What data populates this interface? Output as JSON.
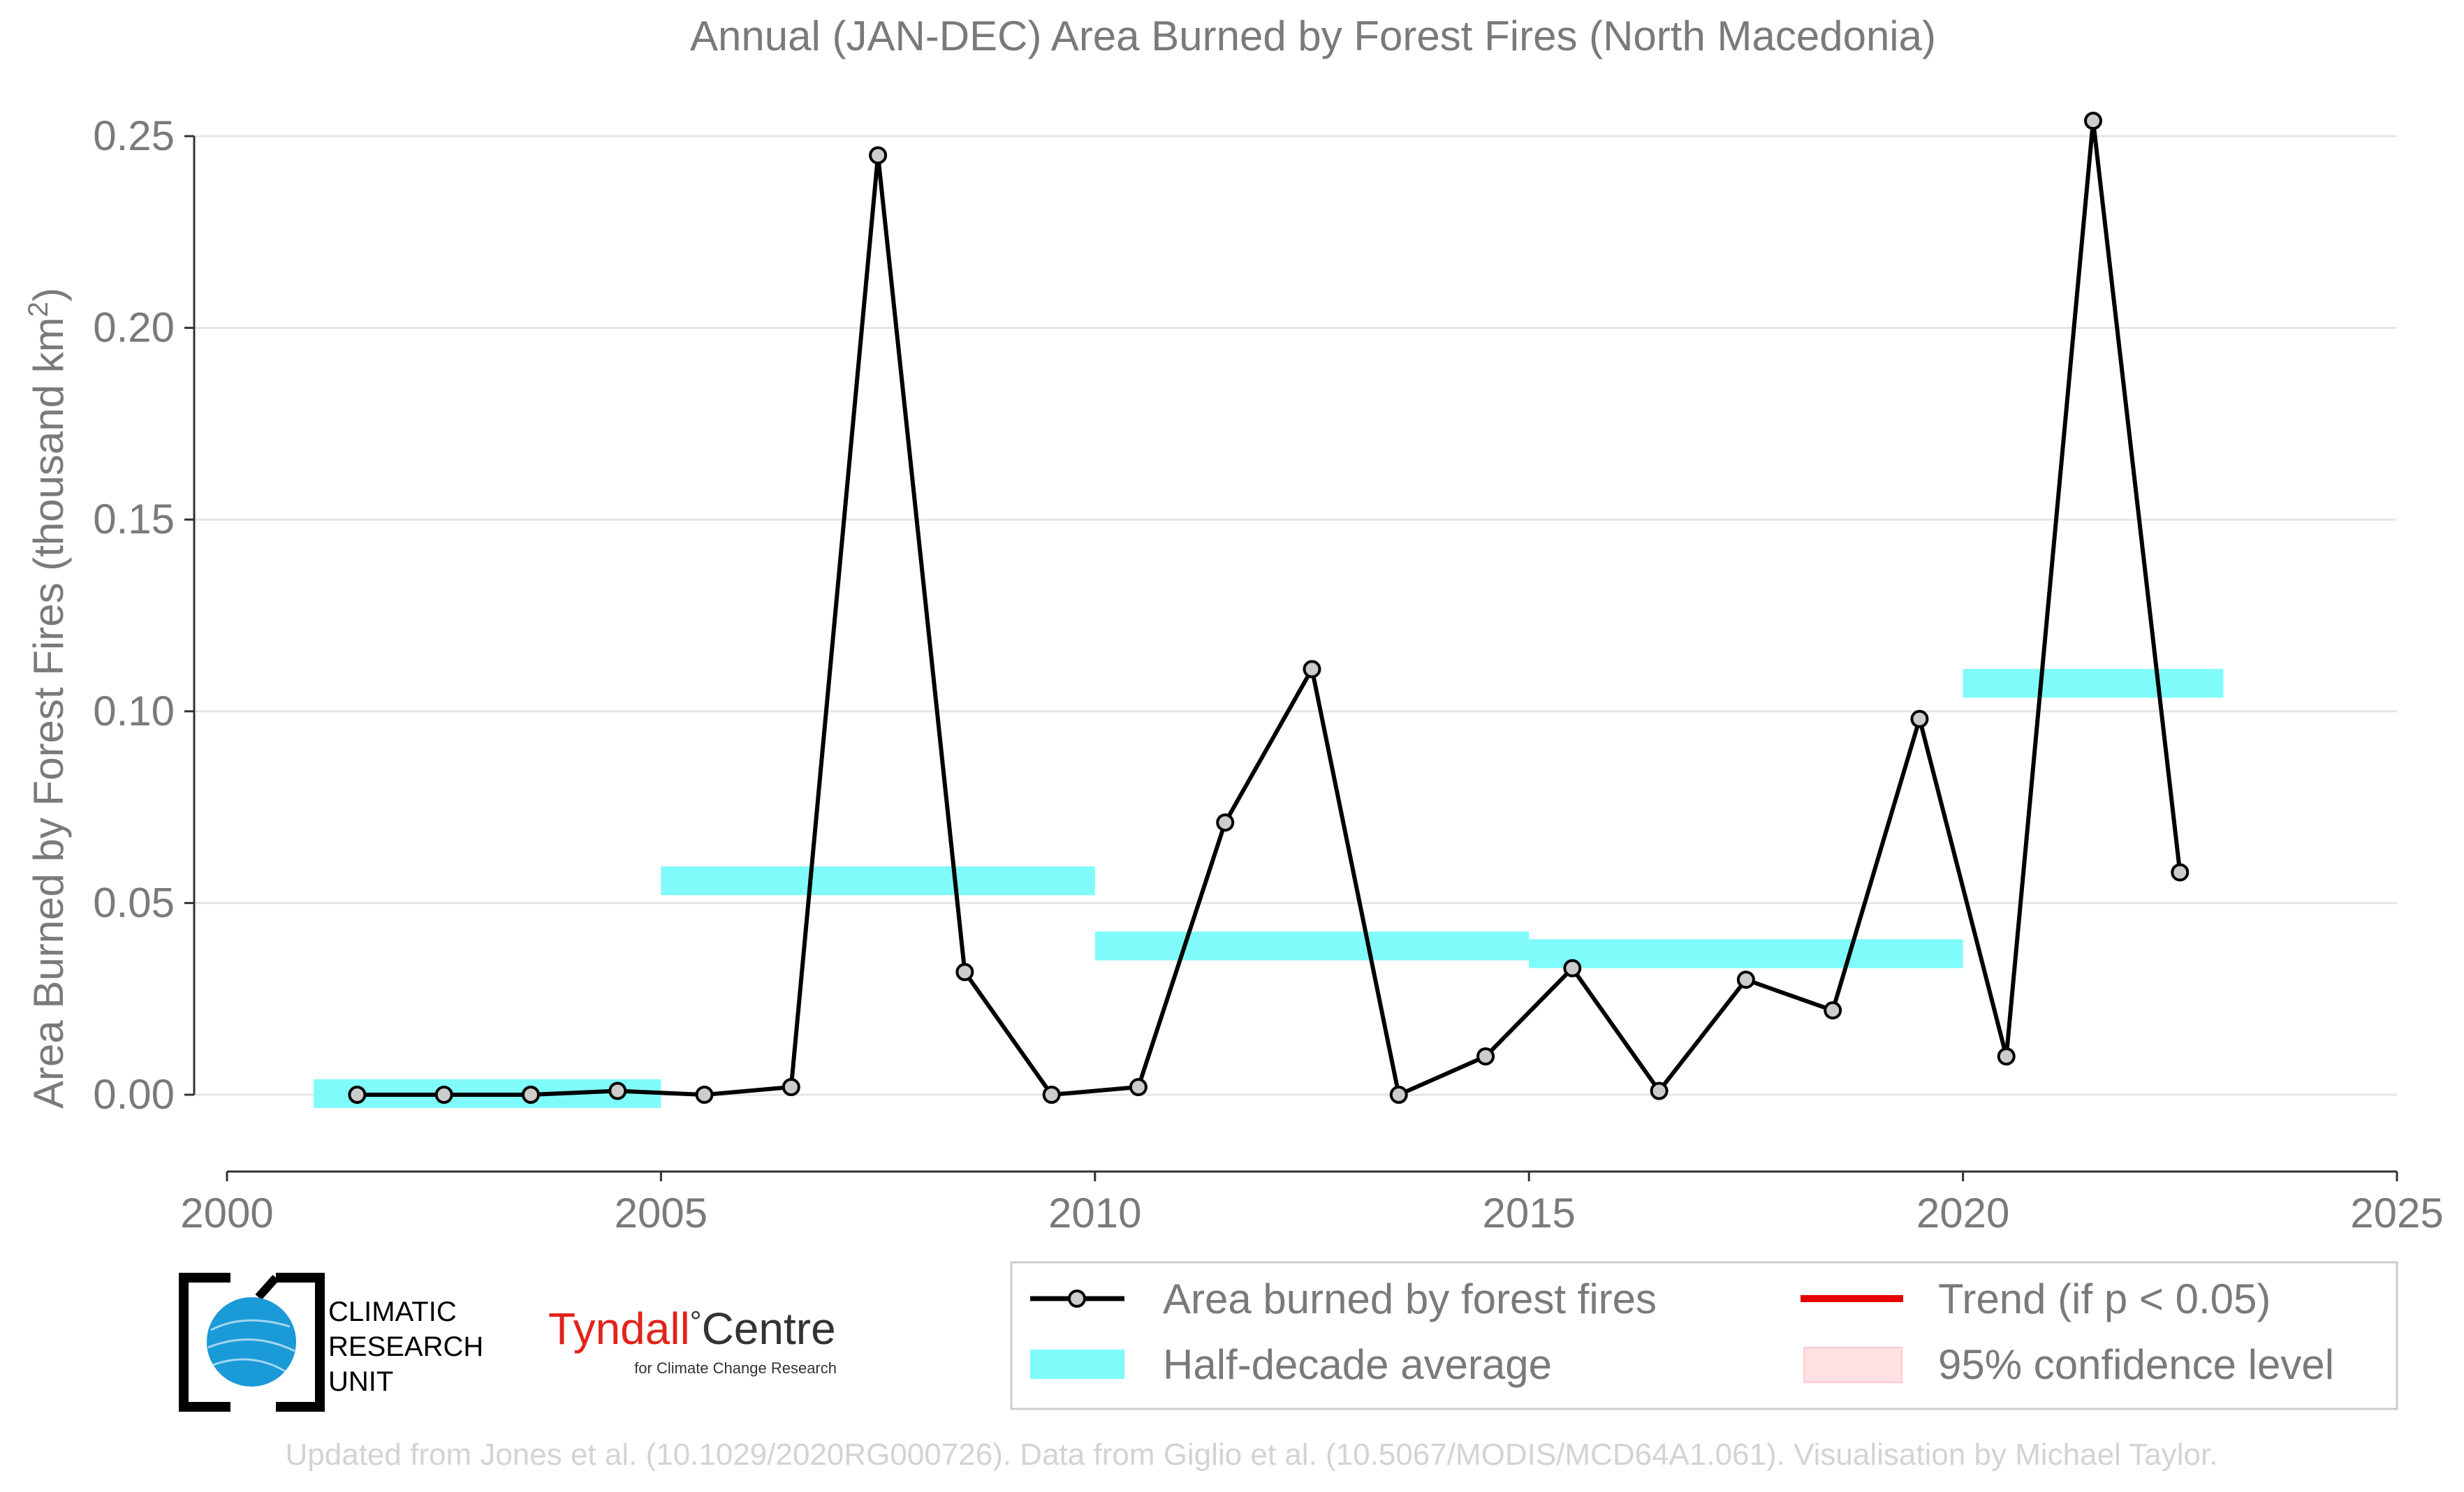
{
  "chart_data": {
    "type": "line",
    "title": "Annual (JAN-DEC) Area Burned by Forest Fires (North Macedonia)",
    "ylabel_main": "Area Burned by Forest Fires (thousand km",
    "ylabel_sup": "2",
    "ylabel_end": ")",
    "xlim": [
      2000,
      2025
    ],
    "ylim": [
      -0.015,
      0.25
    ],
    "x_ticks": [
      {
        "value": 2000,
        "label": "2000"
      },
      {
        "value": 2005,
        "label": "2005"
      },
      {
        "value": 2010,
        "label": "2010"
      },
      {
        "value": 2015,
        "label": "2015"
      },
      {
        "value": 2020,
        "label": "2020"
      },
      {
        "value": 2025,
        "label": "2025"
      }
    ],
    "y_ticks": [
      {
        "value": 0.0,
        "label": "0.00"
      },
      {
        "value": 0.05,
        "label": "0.05"
      },
      {
        "value": 0.1,
        "label": "0.10"
      },
      {
        "value": 0.15,
        "label": "0.15"
      },
      {
        "value": 0.2,
        "label": "0.20"
      },
      {
        "value": 0.25,
        "label": "0.25"
      }
    ],
    "grid": true,
    "series": [
      {
        "name": "Area burned by forest fires",
        "color": "#000000",
        "marker_fill": "#cccccc",
        "points": [
          {
            "x": 2001.5,
            "y": 0.0
          },
          {
            "x": 2002.5,
            "y": 0.0
          },
          {
            "x": 2003.5,
            "y": 0.0
          },
          {
            "x": 2004.5,
            "y": 0.001
          },
          {
            "x": 2005.5,
            "y": 0.0
          },
          {
            "x": 2006.5,
            "y": 0.002
          },
          {
            "x": 2007.5,
            "y": 0.245
          },
          {
            "x": 2008.5,
            "y": 0.032
          },
          {
            "x": 2009.5,
            "y": 0.0
          },
          {
            "x": 2010.5,
            "y": 0.002
          },
          {
            "x": 2011.5,
            "y": 0.071
          },
          {
            "x": 2012.5,
            "y": 0.111
          },
          {
            "x": 2013.5,
            "y": 0.0
          },
          {
            "x": 2014.5,
            "y": 0.01
          },
          {
            "x": 2015.5,
            "y": 0.033
          },
          {
            "x": 2016.5,
            "y": 0.001
          },
          {
            "x": 2017.5,
            "y": 0.03
          },
          {
            "x": 2018.5,
            "y": 0.022
          },
          {
            "x": 2019.5,
            "y": 0.098
          },
          {
            "x": 2020.5,
            "y": 0.01
          },
          {
            "x": 2021.5,
            "y": 0.254
          },
          {
            "x": 2022.5,
            "y": 0.058
          }
        ]
      }
    ],
    "half_decade_averages": {
      "name": "Half-decade average",
      "color": "#7ffbfb",
      "segments": [
        {
          "x0": 2001.0,
          "x1": 2005.0,
          "y": 0.0003
        },
        {
          "x0": 2005.0,
          "x1": 2010.0,
          "y": 0.0558
        },
        {
          "x0": 2010.0,
          "x1": 2015.0,
          "y": 0.0388
        },
        {
          "x0": 2015.0,
          "x1": 2020.0,
          "y": 0.0368
        },
        {
          "x0": 2020.0,
          "x1": 2023.0,
          "y": 0.1073
        }
      ]
    },
    "legend": {
      "placement": "bottom-right",
      "items": [
        {
          "label": "Area burned by forest fires",
          "kind": "line-marker",
          "color": "#000000"
        },
        {
          "label": "Trend (if p < 0.05)",
          "kind": "line",
          "color": "#e60000"
        },
        {
          "label": "Half-decade average",
          "kind": "band",
          "color": "#7ffbfb"
        },
        {
          "label": "95% confidence level",
          "kind": "box",
          "color": "#ffe0e3"
        }
      ]
    }
  },
  "logos": {
    "cru_lines": [
      "CLIMATIC",
      "RESEARCH",
      "UNIT"
    ],
    "tyndall_name": "Tyndall",
    "tyndall_degree": "°",
    "tyndall_centre": "Centre",
    "tyndall_sub": "for Climate Change Research",
    "cru_blue": "#1a9ad7",
    "tyndall_red": "#e2231a"
  },
  "footer": {
    "credit": "Updated from Jones et al. (10.1029/2020RG000726). Data from Giglio et al. (10.5067/MODIS/MCD64A1.061). Visualisation by Michael Taylor."
  }
}
